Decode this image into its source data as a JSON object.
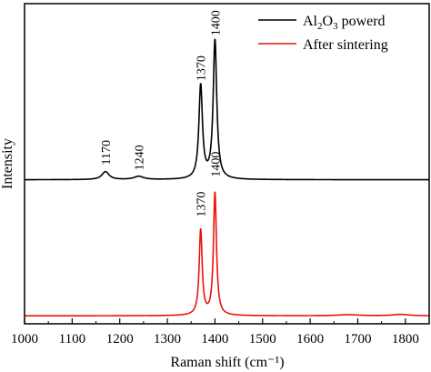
{
  "chart_data": {
    "type": "line",
    "title": "",
    "xlabel": "Raman shift (cm⁻¹)",
    "ylabel": "Intensity",
    "xlim": [
      1000,
      1850
    ],
    "x_ticks": [
      "1000",
      "1100",
      "1200",
      "1300",
      "1400",
      "1500",
      "1600",
      "1700",
      "1800"
    ],
    "y_ticks_visible": false,
    "legend_position": "top-right",
    "series": [
      {
        "name": "Al2O3 powerd",
        "legend_label": {
          "base": "Al",
          "sub1": "2",
          "mid": "O",
          "sub2": "3",
          "rest": " powerd"
        },
        "color": "#000000",
        "baseline": 0.54,
        "peaks": [
          {
            "x": 1170,
            "height": 0.03,
            "width": 9
          },
          {
            "x": 1240,
            "height": 0.012,
            "width": 12
          },
          {
            "x": 1370,
            "height": 0.35,
            "width": 4.5
          },
          {
            "x": 1400,
            "height": 0.52,
            "width": 4.5
          }
        ],
        "annotations": [
          {
            "text": "1170",
            "x": 1170,
            "y": 0.595
          },
          {
            "text": "1240",
            "x": 1240,
            "y": 0.575
          },
          {
            "text": "1370",
            "x": 1370,
            "y": 0.91
          },
          {
            "text": "1400",
            "x": 1400,
            "y": 1.08
          }
        ]
      },
      {
        "name": "After sintering",
        "color": "#e8140a",
        "baseline": 0.03,
        "peaks": [
          {
            "x": 1370,
            "height": 0.32,
            "width": 3.8
          },
          {
            "x": 1400,
            "height": 0.46,
            "width": 3.8
          },
          {
            "x": 1680,
            "height": 0.004,
            "width": 25
          },
          {
            "x": 1790,
            "height": 0.005,
            "width": 20
          }
        ],
        "annotations": [
          {
            "text": "1370",
            "x": 1370,
            "y": 0.4
          },
          {
            "text": "1400",
            "x": 1400,
            "y": 0.55
          }
        ]
      }
    ],
    "ylim": [
      0,
      1.2
    ]
  }
}
